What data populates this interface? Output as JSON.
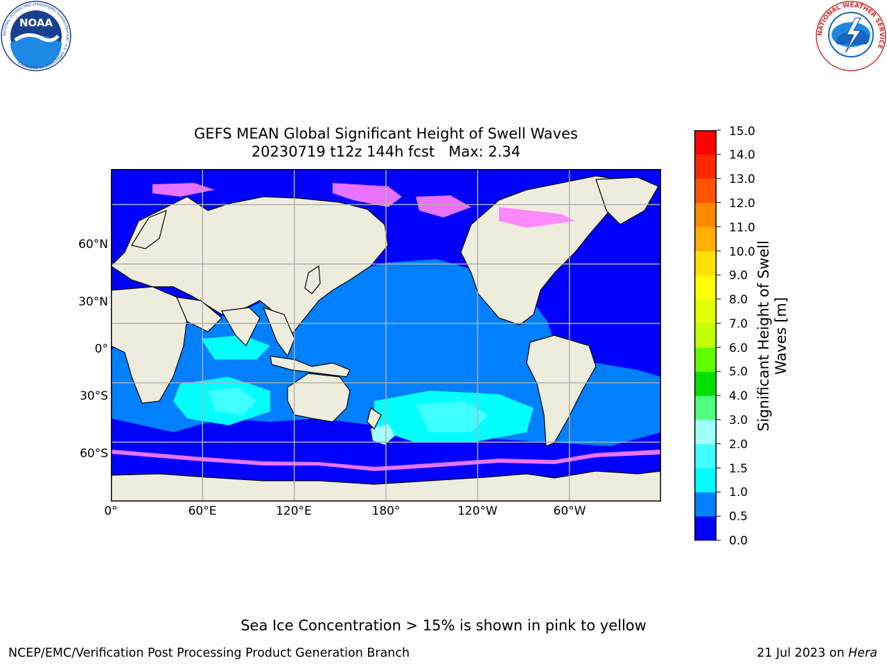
{
  "header": {
    "noaa_logo_text": "NOAA",
    "noaa_logo_ring": "NATIONAL OCEANIC AND ATMOSPHERIC ADMINISTRATION · U.S. DEPARTMENT OF COMMERCE",
    "nws_logo_ring": "NATIONAL WEATHER SERVICE"
  },
  "title": {
    "line1": "GEFS MEAN Global Significant Height of Swell Waves",
    "line2": "20230719 t12z 144h fcst   Max: 2.34"
  },
  "map": {
    "lat_labels": [
      "60°N",
      "30°N",
      "0°",
      "30°S",
      "60°S"
    ],
    "lon_labels": [
      "0°",
      "60°E",
      "120°E",
      "180°",
      "120°W",
      "60°W"
    ],
    "lon_range": [
      0,
      360
    ],
    "lat_range": [
      -90,
      78
    ],
    "grid": true,
    "colors": {
      "land": "#eeecdd",
      "coast": "#000000",
      "grid": "#b0b0b0",
      "sea_ice": "#ff7fff"
    }
  },
  "colorbar": {
    "label": "Significant Height of Swell Waves [m]",
    "ticks": [
      "15.0",
      "14.0",
      "13.0",
      "12.0",
      "11.0",
      "10.0",
      "9.0",
      "8.0",
      "7.0",
      "6.0",
      "5.0",
      "4.0",
      "3.0",
      "2.0",
      "1.5",
      "1.0",
      "0.5",
      "0.0"
    ],
    "bins": [
      {
        "from": 0.0,
        "to": 0.5,
        "color": "#0000ff"
      },
      {
        "from": 0.5,
        "to": 1.0,
        "color": "#0080ff"
      },
      {
        "from": 1.0,
        "to": 1.5,
        "color": "#00ffff"
      },
      {
        "from": 1.5,
        "to": 2.0,
        "color": "#40ffff"
      },
      {
        "from": 2.0,
        "to": 3.0,
        "color": "#a0ffff"
      },
      {
        "from": 3.0,
        "to": 4.0,
        "color": "#50ff7f"
      },
      {
        "from": 4.0,
        "to": 5.0,
        "color": "#00e000"
      },
      {
        "from": 5.0,
        "to": 6.0,
        "color": "#60ff00"
      },
      {
        "from": 6.0,
        "to": 7.0,
        "color": "#c0ff00"
      },
      {
        "from": 7.0,
        "to": 8.0,
        "color": "#e0ff00"
      },
      {
        "from": 8.0,
        "to": 9.0,
        "color": "#ffff00"
      },
      {
        "from": 9.0,
        "to": 10.0,
        "color": "#ffe000"
      },
      {
        "from": 10.0,
        "to": 11.0,
        "color": "#ffb000"
      },
      {
        "from": 11.0,
        "to": 12.0,
        "color": "#ff8800"
      },
      {
        "from": 12.0,
        "to": 13.0,
        "color": "#ff5500"
      },
      {
        "from": 13.0,
        "to": 14.0,
        "color": "#ff2800"
      },
      {
        "from": 14.0,
        "to": 15.0,
        "color": "#ff0000"
      }
    ]
  },
  "footnote": "Sea Ice Concentration > 15% is shown in pink to yellow",
  "credit": {
    "left": "NCEP/EMC/Verification Post Processing Product Generation Branch",
    "right_date": "21 Jul 2023 on ",
    "right_system": "Hera"
  }
}
